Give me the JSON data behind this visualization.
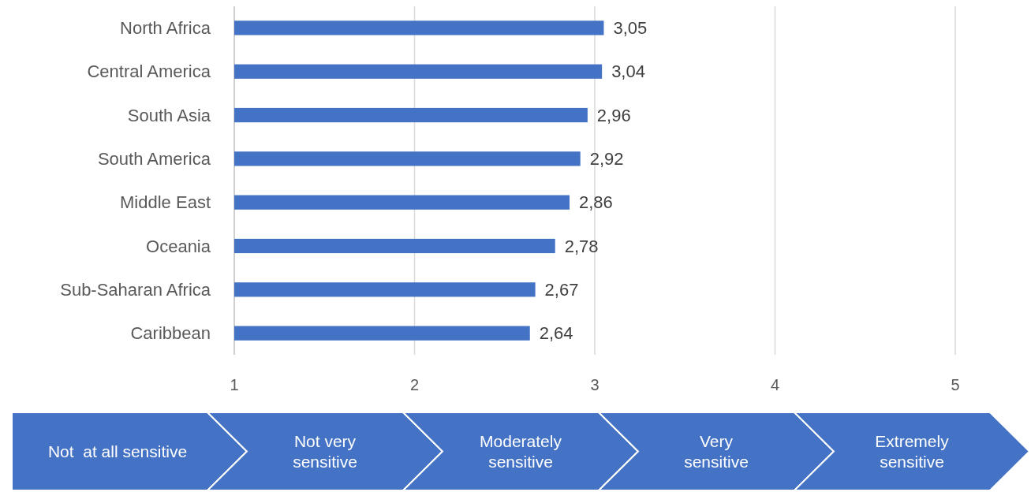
{
  "chart_data": {
    "type": "bar",
    "orientation": "horizontal",
    "categories": [
      "North Africa",
      "Central America",
      "South Asia",
      "South America",
      "Middle East",
      "Oceania",
      "Sub-Saharan Africa",
      "Caribbean"
    ],
    "values": [
      3.05,
      3.04,
      2.96,
      2.92,
      2.86,
      2.78,
      2.67,
      2.64
    ],
    "value_labels": [
      "3,05",
      "3,04",
      "2,96",
      "2,92",
      "2,86",
      "2,78",
      "2,67",
      "2,64"
    ],
    "color": "#4472c4",
    "xlim": [
      1,
      5
    ],
    "xticks": [
      1,
      2,
      3,
      4,
      5
    ],
    "grid": "x",
    "annotations": [
      "Not  at all sensitive",
      "Not very sensitive",
      "Moderately sensitive",
      "Very sensitive",
      "Extremely sensitive"
    ]
  }
}
